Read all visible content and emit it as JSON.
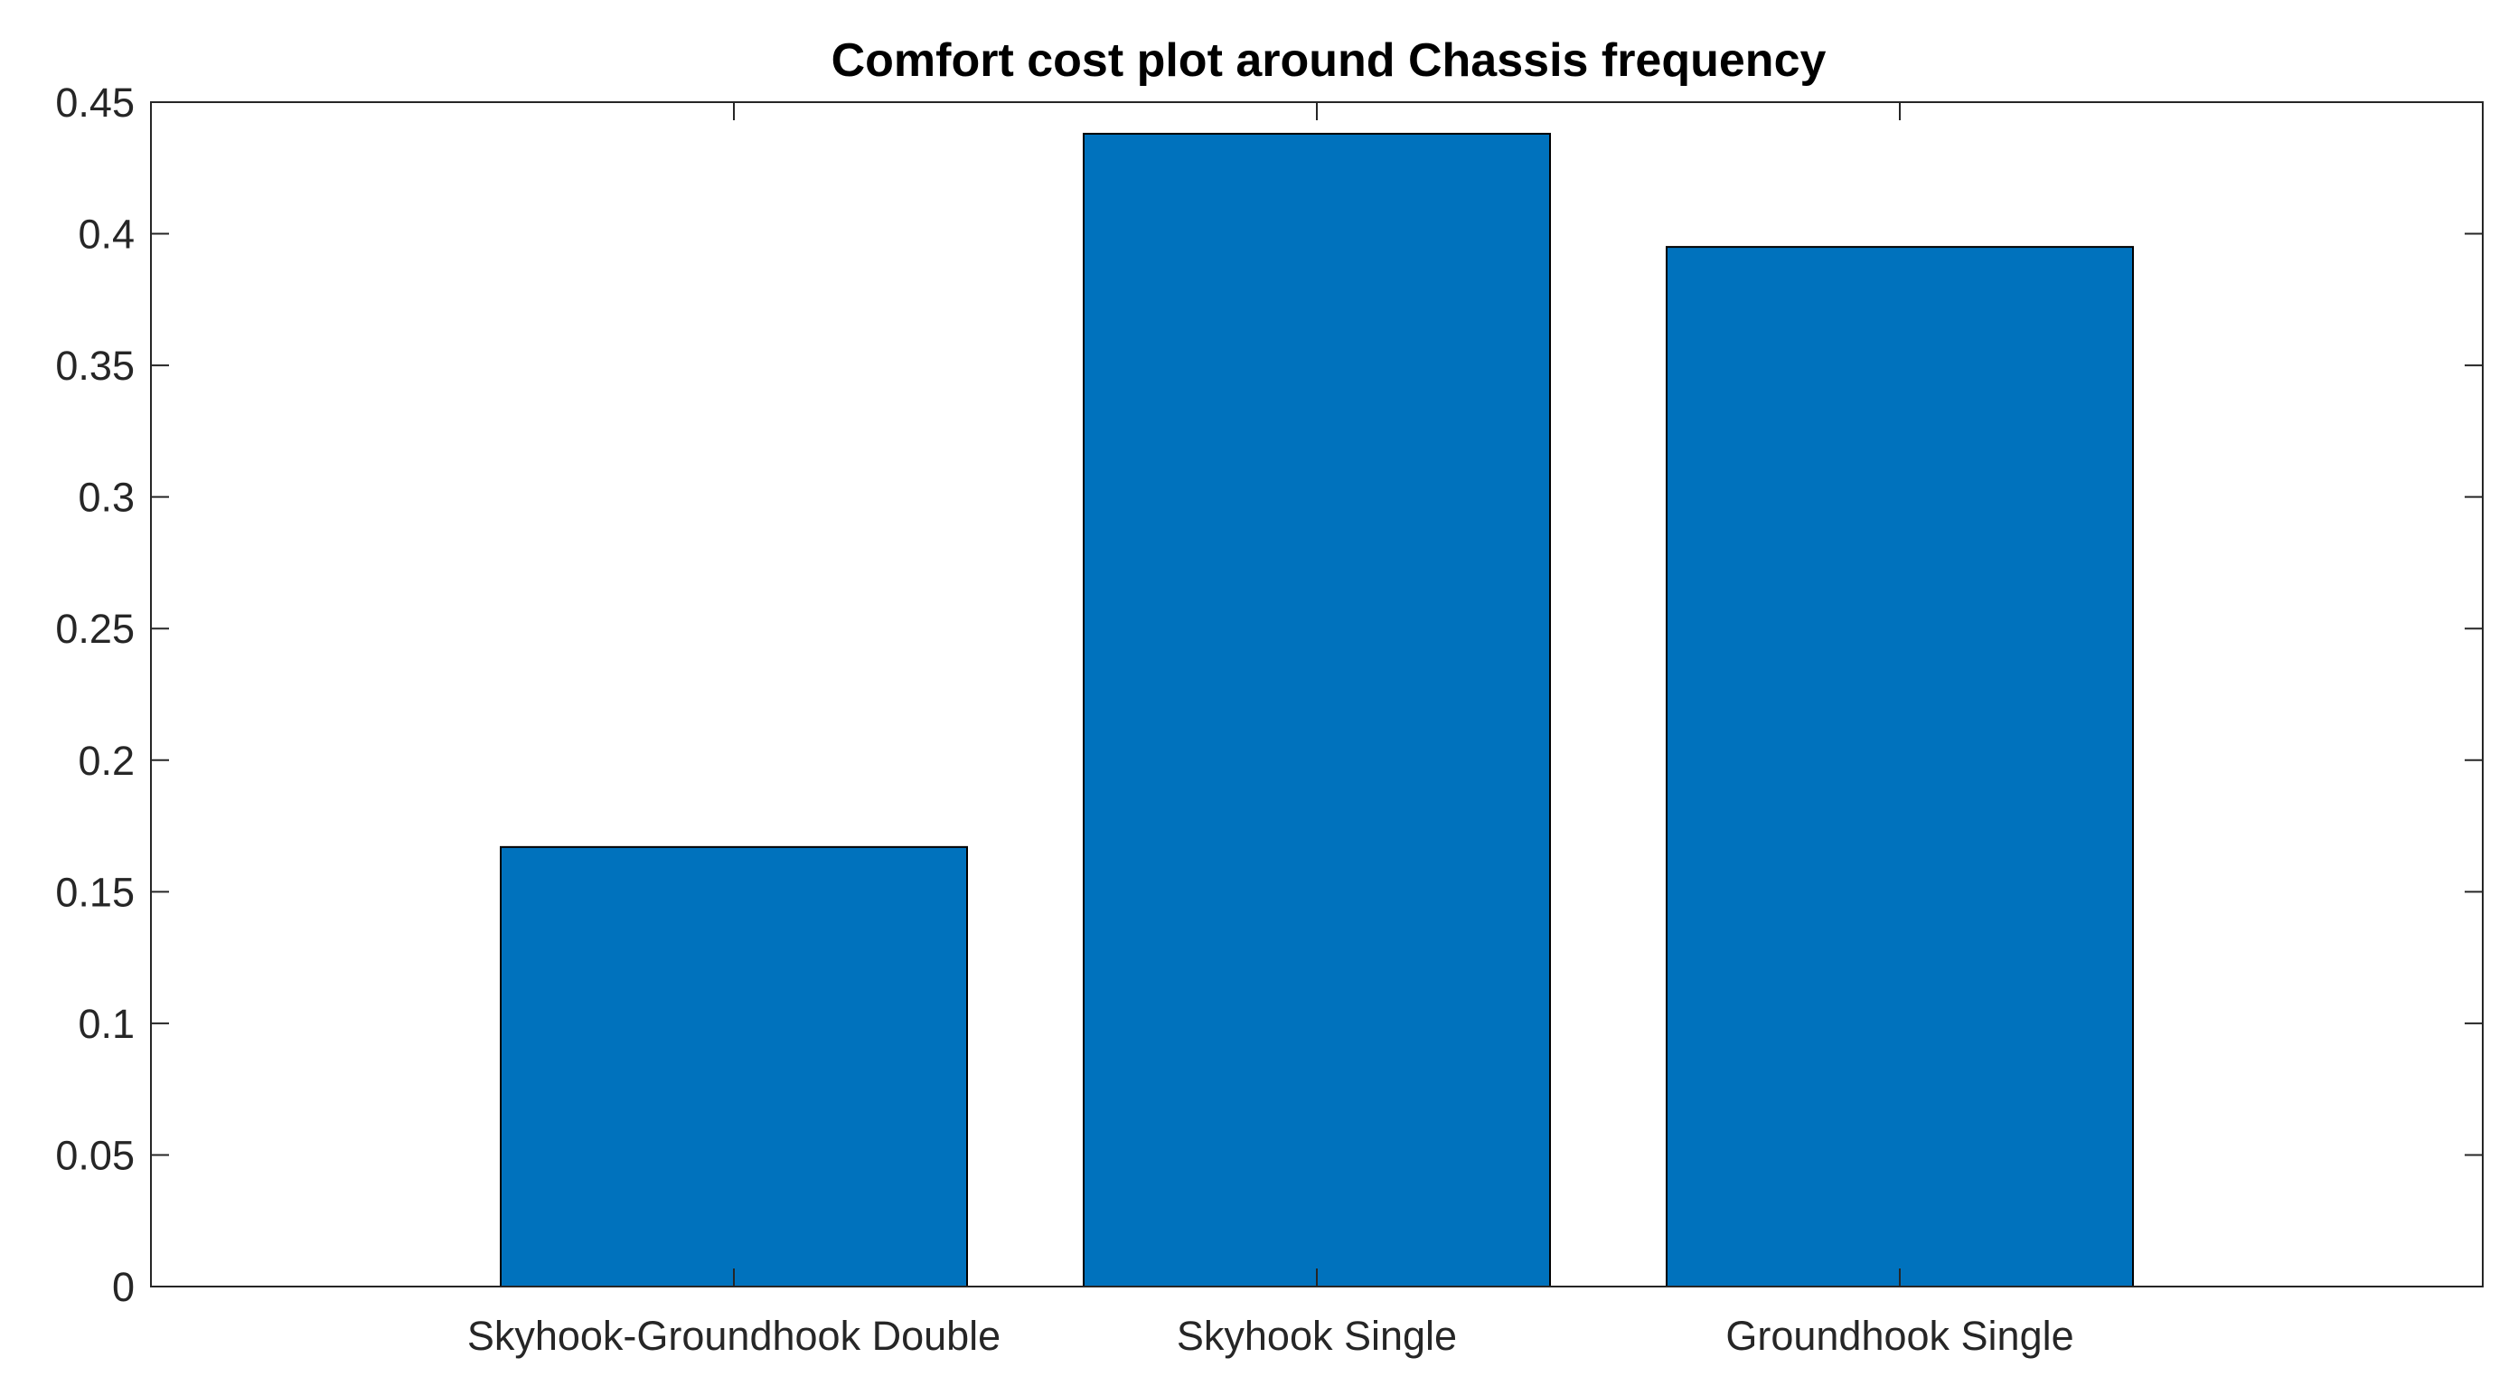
{
  "chart_data": {
    "type": "bar",
    "title": "Comfort cost plot around Chassis frequency",
    "xlabel": "",
    "ylabel": "",
    "categories": [
      "Skyhook-Groundhook Double",
      "Skyhook Single",
      "Groundhook Single"
    ],
    "values": [
      0.167,
      0.438,
      0.395
    ],
    "ylim": [
      0,
      0.45
    ],
    "xlim": [
      0,
      4
    ],
    "yticks": [
      0,
      0.05,
      0.1,
      0.15,
      0.2,
      0.25,
      0.3,
      0.35,
      0.4,
      0.45
    ],
    "ytick_labels": [
      "0",
      "0.05",
      "0.1",
      "0.15",
      "0.2",
      "0.25",
      "0.3",
      "0.35",
      "0.4",
      "0.45"
    ],
    "grid": false,
    "legend": "none",
    "colors": {
      "bar": "#0072BD",
      "bar_edge": "#000000",
      "axis": "#262626"
    }
  }
}
